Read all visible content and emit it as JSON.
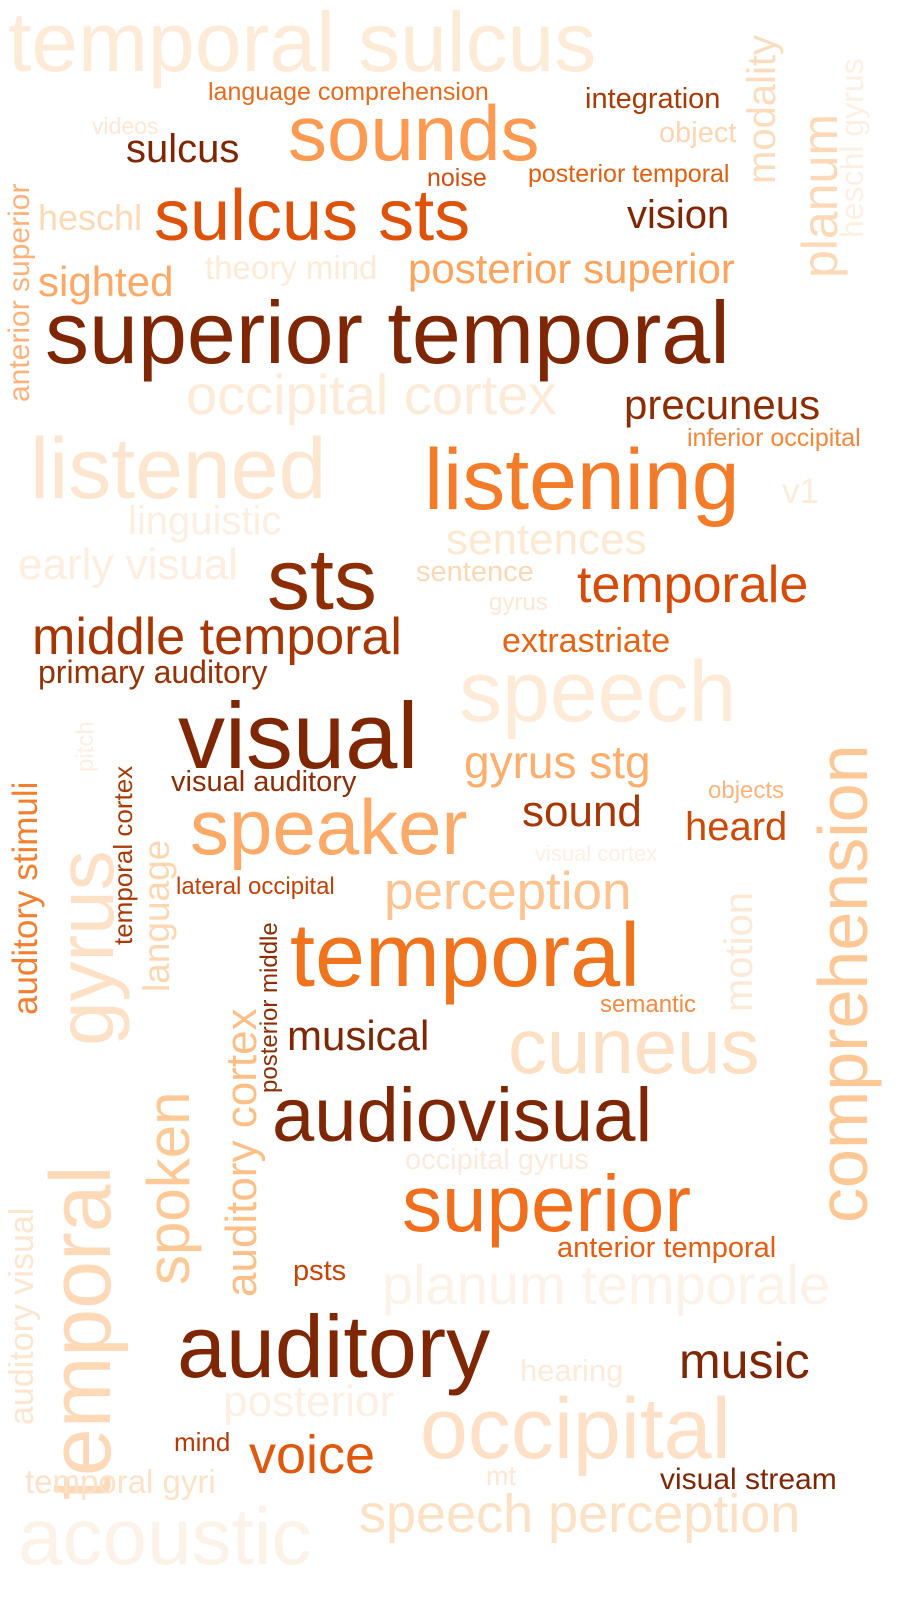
{
  "words": [
    {
      "text": "temporal sulcus",
      "color": "#fdebd8"
    },
    {
      "text": "modality",
      "color": "#fcdcbd"
    },
    {
      "text": "heschl gyrus",
      "color": "#fdf0e3"
    },
    {
      "text": "language comprehension",
      "color": "#e86a1a"
    },
    {
      "text": "integration",
      "color": "#a83a06"
    },
    {
      "text": "videos",
      "color": "#fde8d3"
    },
    {
      "text": "sounds",
      "color": "#fb9a50"
    },
    {
      "text": "object",
      "color": "#fdd5b1"
    },
    {
      "text": "planum",
      "color": "#fdd9b7"
    },
    {
      "text": "sulcus",
      "color": "#7f2704"
    },
    {
      "text": "noise",
      "color": "#d94d0b"
    },
    {
      "text": "posterior temporal",
      "color": "#e0600f"
    },
    {
      "text": "anterior superior",
      "color": "#fdb27a"
    },
    {
      "text": "heschl",
      "color": "#fdd9b6"
    },
    {
      "text": "sulcus sts",
      "color": "#de5209"
    },
    {
      "text": "vision",
      "color": "#7f2704"
    },
    {
      "text": "sighted",
      "color": "#fda864"
    },
    {
      "text": "theory mind",
      "color": "#fdebd6"
    },
    {
      "text": "posterior superior",
      "color": "#fda45c"
    },
    {
      "text": "superior temporal",
      "color": "#7f2704"
    },
    {
      "text": "occipital cortex",
      "color": "#fdebd8"
    },
    {
      "text": "precuneus",
      "color": "#8c2d04"
    },
    {
      "text": "inferior occipital",
      "color": "#f5873a"
    },
    {
      "text": "listened",
      "color": "#fde6cf"
    },
    {
      "text": "listening",
      "color": "#f47c28"
    },
    {
      "text": "v1",
      "color": "#fdecd9"
    },
    {
      "text": "linguistic",
      "color": "#fdefe0"
    },
    {
      "text": "sentences",
      "color": "#fde8d2"
    },
    {
      "text": "early visual",
      "color": "#fdeedf"
    },
    {
      "text": "sts",
      "color": "#8c2d04"
    },
    {
      "text": "sentence",
      "color": "#fdd8b4"
    },
    {
      "text": "temporale",
      "color": "#d64b08"
    },
    {
      "text": "gyrus",
      "color": "#fde8d4"
    },
    {
      "text": "middle temporal",
      "color": "#a63603"
    },
    {
      "text": "extrastriate",
      "color": "#e66513"
    },
    {
      "text": "primary auditory",
      "color": "#963205"
    },
    {
      "text": "speech",
      "color": "#fdebd8"
    },
    {
      "text": "auditory stimuli",
      "color": "#f38030"
    },
    {
      "text": "pitch",
      "color": "#fdeee0"
    },
    {
      "text": "temporal cortex",
      "color": "#a83a06"
    },
    {
      "text": "visual",
      "color": "#7f2704"
    },
    {
      "text": "comprehension",
      "color": "#fdc895"
    },
    {
      "text": "gyrus stg",
      "color": "#fdae6b"
    },
    {
      "text": "visual auditory",
      "color": "#8c2d04"
    },
    {
      "text": "objects",
      "color": "#fdb47b"
    },
    {
      "text": "gyrus",
      "color": "#fde1c6"
    },
    {
      "text": "language",
      "color": "#fdd7b1"
    },
    {
      "text": "speaker",
      "color": "#fdaa68"
    },
    {
      "text": "sound",
      "color": "#a63603"
    },
    {
      "text": "heard",
      "color": "#cc4a06"
    },
    {
      "text": "visual cortex",
      "color": "#fdf0e3"
    },
    {
      "text": "lateral occipital",
      "color": "#c24107"
    },
    {
      "text": "perception",
      "color": "#fdc491"
    },
    {
      "text": "motion",
      "color": "#fde9d6"
    },
    {
      "text": "auditory cortex",
      "color": "#fdbf86"
    },
    {
      "text": "posterior middle",
      "color": "#8c2d04"
    },
    {
      "text": "temporal",
      "color": "#f0731e"
    },
    {
      "text": "semantic",
      "color": "#f5893f"
    },
    {
      "text": "spoken",
      "color": "#fdca97"
    },
    {
      "text": "musical",
      "color": "#7f2704"
    },
    {
      "text": "cuneus",
      "color": "#fde0c3"
    },
    {
      "text": "auditory visual",
      "color": "#fde6d0"
    },
    {
      "text": "temporal",
      "color": "#fdd9b8"
    },
    {
      "text": "audiovisual",
      "color": "#7f2704"
    },
    {
      "text": "occipital gyrus",
      "color": "#fdeadb"
    },
    {
      "text": "superior",
      "color": "#f06e1c"
    },
    {
      "text": "anterior temporal",
      "color": "#e45e12"
    },
    {
      "text": "psts",
      "color": "#c44506"
    },
    {
      "text": "planum temporale",
      "color": "#fdf2e8"
    },
    {
      "text": "auditory",
      "color": "#7f2704"
    },
    {
      "text": "hearing",
      "color": "#fdebd8"
    },
    {
      "text": "music",
      "color": "#7f2704"
    },
    {
      "text": "posterior",
      "color": "#fdefe1"
    },
    {
      "text": "occipital",
      "color": "#fde0c6"
    },
    {
      "text": "mind",
      "color": "#b63a04"
    },
    {
      "text": "voice",
      "color": "#e0580d"
    },
    {
      "text": "mt",
      "color": "#fde8d2"
    },
    {
      "text": "visual stream",
      "color": "#7f2704"
    },
    {
      "text": "temporal gyri",
      "color": "#fde2c8"
    },
    {
      "text": "acoustic",
      "color": "#fdf2e8"
    },
    {
      "text": "speech perception",
      "color": "#fde1c5"
    }
  ]
}
